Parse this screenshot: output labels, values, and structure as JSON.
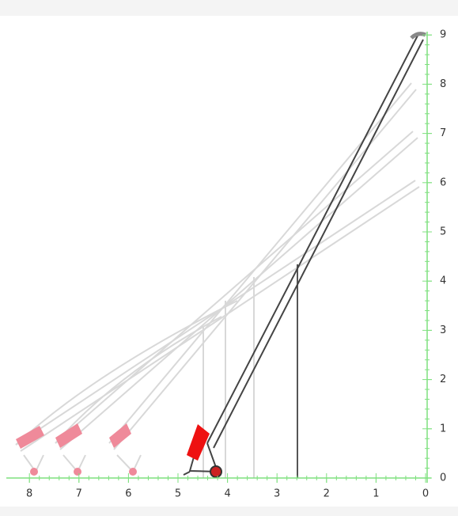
{
  "x_axis": {
    "ticks": [
      8,
      7,
      6,
      5,
      4,
      3,
      2,
      1,
      0
    ]
  },
  "y_axis": {
    "ticks": [
      0,
      1,
      2,
      3,
      4,
      5,
      6,
      7,
      8,
      9
    ]
  }
}
